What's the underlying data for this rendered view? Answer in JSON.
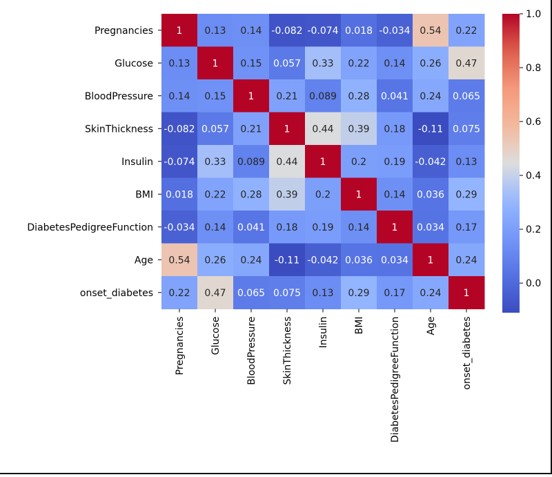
{
  "chart_data": {
    "type": "heatmap",
    "title": "",
    "xlabel": "",
    "ylabel": "",
    "labels": [
      "Pregnancies",
      "Glucose",
      "BloodPressure",
      "SkinThickness",
      "Insulin",
      "BMI",
      "DiabetesPedigreeFunction",
      "Age",
      "onset_diabetes"
    ],
    "matrix": [
      [
        1,
        0.13,
        0.14,
        -0.082,
        -0.074,
        0.018,
        -0.034,
        0.54,
        0.22
      ],
      [
        0.13,
        1,
        0.15,
        0.057,
        0.33,
        0.22,
        0.14,
        0.26,
        0.47
      ],
      [
        0.14,
        0.15,
        1,
        0.21,
        0.089,
        0.28,
        0.041,
        0.24,
        0.065
      ],
      [
        -0.082,
        0.057,
        0.21,
        1,
        0.44,
        0.39,
        0.18,
        -0.11,
        0.075
      ],
      [
        -0.074,
        0.33,
        0.089,
        0.44,
        1,
        0.2,
        0.19,
        -0.042,
        0.13
      ],
      [
        0.018,
        0.22,
        0.28,
        0.39,
        0.2,
        1,
        0.14,
        0.036,
        0.29
      ],
      [
        -0.034,
        0.14,
        0.041,
        0.18,
        0.19,
        0.14,
        1,
        0.034,
        0.17
      ],
      [
        0.54,
        0.26,
        0.24,
        -0.11,
        -0.042,
        0.036,
        0.034,
        1,
        0.24
      ],
      [
        0.22,
        0.47,
        0.065,
        0.075,
        0.13,
        0.29,
        0.17,
        0.24,
        1
      ]
    ],
    "colormap": "coolwarm",
    "vmin": -0.11,
    "vmax": 1.0,
    "colorbar_ticks": [
      "0.0",
      "0.2",
      "0.4",
      "0.6",
      "0.8",
      "1.0"
    ],
    "annotations": true
  }
}
